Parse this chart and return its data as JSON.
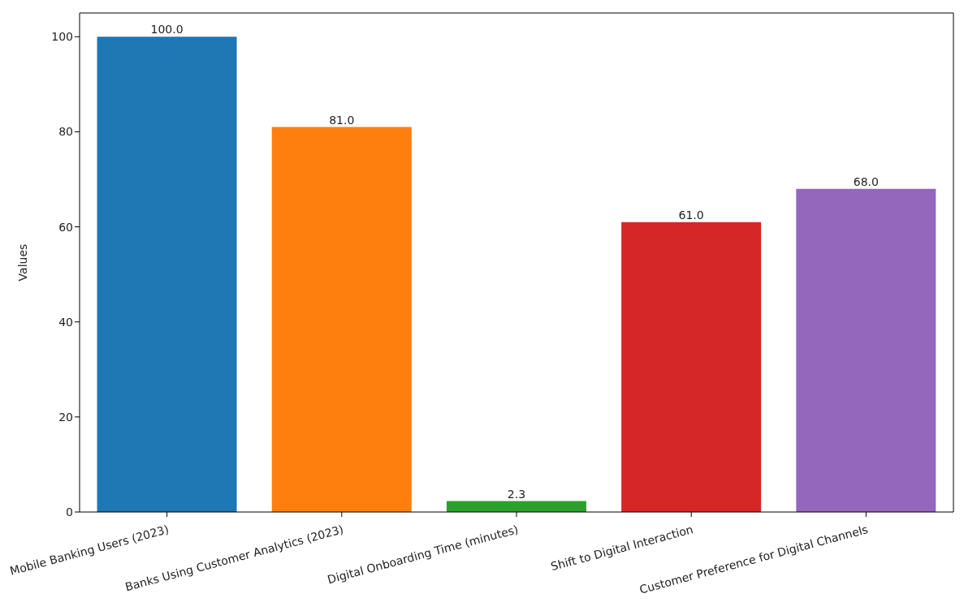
{
  "chart_data": {
    "type": "bar",
    "ylabel": "Values",
    "categories": [
      "Mobile Banking Users (2023)",
      "Banks Using Customer Analytics (2023)",
      "Digital Onboarding Time (minutes)",
      "Shift to Digital Interaction",
      "Customer Preference for Digital Channels"
    ],
    "values": [
      100,
      81,
      2.3,
      61,
      68
    ],
    "colors": [
      "#1f77b4",
      "#ff7f0e",
      "#2ca02c",
      "#d62728",
      "#9467bd"
    ],
    "value_labels": [
      "100.0",
      "81.0",
      "2.3",
      "61.0",
      "68.0"
    ],
    "ylim": [
      0,
      105
    ],
    "yticks": [
      0,
      20,
      40,
      60,
      80,
      100
    ],
    "grid": false
  }
}
